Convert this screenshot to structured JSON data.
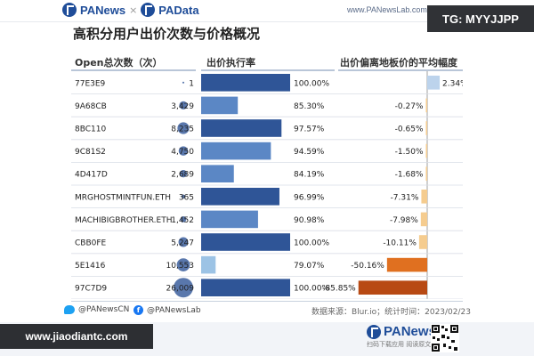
{
  "header": {
    "brand_left": "PANews",
    "brand_sep": "×",
    "brand_right": "PAData",
    "url": "www.PANewsLab.com",
    "tg_badge": "TG: MYYJJPP"
  },
  "title": "高积分用户出价次数与价格概况",
  "footer": {
    "twitter": "@PANewsCN",
    "facebook": "@PANewsLab",
    "source": "数据来源：Blur.io；统计时间：2023/02/23"
  },
  "bottom": {
    "site": "www.jiaodiantc.com",
    "brand": "PANews",
    "brand_sub": "扫码下载应用  阅读原文"
  },
  "colors": {
    "bar_dark": "#2f5597",
    "bar_mid": "#5b87c5",
    "bar_light": "#9cc3e5",
    "neg_pale": "#f5cc8f",
    "neg_orange": "#e07020",
    "neg_dark": "#b84a14",
    "pos": "#bcd3ec",
    "bubble": "#2f5597"
  },
  "chart_data": {
    "type": "table",
    "columns": [
      "Open总次数（次）",
      "出价执行率",
      "出价偏离地板价的平均幅度"
    ],
    "rows": [
      {
        "name": "77E3E9",
        "open": 1,
        "open_label": "1",
        "rate": 100.0,
        "rate_label": "100.00%",
        "dev": 2.34,
        "dev_label": "2.34%"
      },
      {
        "name": "9A68CB",
        "open": 3429,
        "open_label": "3,429",
        "rate": 85.3,
        "rate_label": "85.30%",
        "dev": -0.27,
        "dev_label": "-0.27%"
      },
      {
        "name": "8BC110",
        "open": 8235,
        "open_label": "8,235",
        "rate": 97.57,
        "rate_label": "97.57%",
        "dev": -0.65,
        "dev_label": "-0.65%"
      },
      {
        "name": "9C81S2",
        "open": 4750,
        "open_label": "4,750",
        "rate": 94.59,
        "rate_label": "94.59%",
        "dev": -1.5,
        "dev_label": "-1.50%"
      },
      {
        "name": "4D417D",
        "open": 2689,
        "open_label": "2,689",
        "rate": 84.19,
        "rate_label": "84.19%",
        "dev": -1.68,
        "dev_label": "-1.68%"
      },
      {
        "name": "MRGHOSTMINTFUN.ETH",
        "open": 365,
        "open_label": "365",
        "rate": 96.99,
        "rate_label": "96.99%",
        "dev": -7.31,
        "dev_label": "-7.31%"
      },
      {
        "name": "MACHIBIGBROTHER.ETH",
        "open": 1452,
        "open_label": "1,452",
        "rate": 90.98,
        "rate_label": "90.98%",
        "dev": -7.98,
        "dev_label": "-7.98%"
      },
      {
        "name": "CBB0FE",
        "open": 5247,
        "open_label": "5,247",
        "rate": 100.0,
        "rate_label": "100.00%",
        "dev": -10.11,
        "dev_label": "-10.11%"
      },
      {
        "name": "5E1416",
        "open": 10553,
        "open_label": "10,553",
        "rate": 79.07,
        "rate_label": "79.07%",
        "dev": -50.16,
        "dev_label": "-50.16%"
      },
      {
        "name": "97C7D9",
        "open": 26009,
        "open_label": "26,009",
        "rate": 100.0,
        "rate_label": "100.00%",
        "dev": -85.85,
        "dev_label": "-85.85%"
      }
    ],
    "rate_range": [
      75,
      100
    ],
    "dev_range": [
      -100,
      5
    ]
  }
}
